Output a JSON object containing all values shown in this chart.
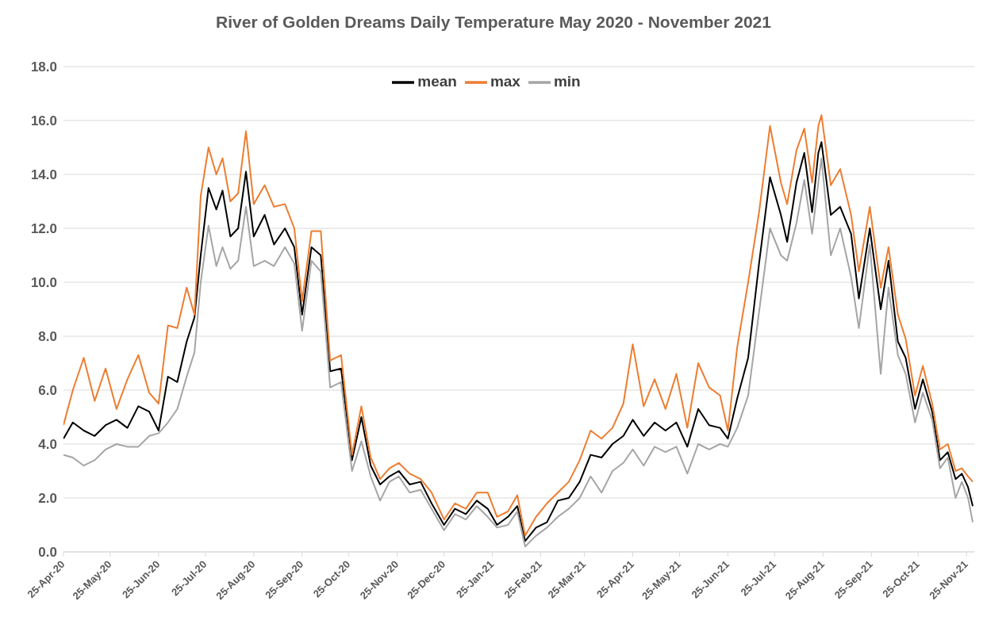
{
  "chart_data": {
    "type": "line",
    "title": "River of Golden Dreams Daily Temperature May 2020 - November 2021",
    "x": [
      "2020-04-25",
      "2020-05-01",
      "2020-05-08",
      "2020-05-15",
      "2020-05-22",
      "2020-05-29",
      "2020-06-05",
      "2020-06-12",
      "2020-06-19",
      "2020-06-25",
      "2020-07-01",
      "2020-07-07",
      "2020-07-13",
      "2020-07-18",
      "2020-07-22",
      "2020-07-27",
      "2020-08-01",
      "2020-08-05",
      "2020-08-10",
      "2020-08-15",
      "2020-08-20",
      "2020-08-25",
      "2020-09-01",
      "2020-09-07",
      "2020-09-14",
      "2020-09-20",
      "2020-09-25",
      "2020-10-01",
      "2020-10-07",
      "2020-10-13",
      "2020-10-20",
      "2020-10-27",
      "2020-11-02",
      "2020-11-08",
      "2020-11-14",
      "2020-11-20",
      "2020-11-26",
      "2020-12-03",
      "2020-12-10",
      "2020-12-17",
      "2020-12-25",
      "2021-01-01",
      "2021-01-08",
      "2021-01-15",
      "2021-01-22",
      "2021-01-28",
      "2021-02-04",
      "2021-02-10",
      "2021-02-15",
      "2021-02-22",
      "2021-03-01",
      "2021-03-08",
      "2021-03-15",
      "2021-03-22",
      "2021-03-29",
      "2021-04-05",
      "2021-04-12",
      "2021-04-19",
      "2021-04-25",
      "2021-05-02",
      "2021-05-09",
      "2021-05-16",
      "2021-05-23",
      "2021-05-30",
      "2021-06-06",
      "2021-06-13",
      "2021-06-20",
      "2021-06-25",
      "2021-07-01",
      "2021-07-08",
      "2021-07-15",
      "2021-07-22",
      "2021-07-29",
      "2021-08-02",
      "2021-08-08",
      "2021-08-13",
      "2021-08-18",
      "2021-08-22",
      "2021-08-24",
      "2021-08-30",
      "2021-09-05",
      "2021-09-12",
      "2021-09-17",
      "2021-09-24",
      "2021-10-01",
      "2021-10-06",
      "2021-10-12",
      "2021-10-17",
      "2021-10-23",
      "2021-10-28",
      "2021-11-03",
      "2021-11-08",
      "2021-11-13",
      "2021-11-18",
      "2021-11-22",
      "2021-11-26",
      "2021-11-29"
    ],
    "series": [
      {
        "name": "mean",
        "color": "#000000",
        "values": [
          4.2,
          4.8,
          4.5,
          4.3,
          4.7,
          4.9,
          4.6,
          5.4,
          5.2,
          4.5,
          6.5,
          6.3,
          7.8,
          8.7,
          11.0,
          13.5,
          12.7,
          13.4,
          11.7,
          12.0,
          14.1,
          11.7,
          12.5,
          11.4,
          12.0,
          11.3,
          8.8,
          11.3,
          11.0,
          6.7,
          6.8,
          3.4,
          5.0,
          3.2,
          2.5,
          2.8,
          3.0,
          2.5,
          2.6,
          1.8,
          1.0,
          1.6,
          1.4,
          1.9,
          1.6,
          1.0,
          1.3,
          1.7,
          0.4,
          0.9,
          1.1,
          1.9,
          2.0,
          2.6,
          3.6,
          3.5,
          4.0,
          4.3,
          4.9,
          4.3,
          4.8,
          4.5,
          4.8,
          3.9,
          5.3,
          4.7,
          4.6,
          4.2,
          5.7,
          7.2,
          10.7,
          13.9,
          12.5,
          11.5,
          13.7,
          14.8,
          12.6,
          14.8,
          15.2,
          12.5,
          12.8,
          11.8,
          9.4,
          12.0,
          9.0,
          10.8,
          7.8,
          7.2,
          5.3,
          6.4,
          5.2,
          3.4,
          3.7,
          2.7,
          2.9,
          2.4,
          1.7
        ]
      },
      {
        "name": "max",
        "color": "#ed7d31",
        "values": [
          4.7,
          6.0,
          7.2,
          5.6,
          6.8,
          5.3,
          6.4,
          7.3,
          5.9,
          5.5,
          8.4,
          8.3,
          9.8,
          8.8,
          13.2,
          15.0,
          14.0,
          14.6,
          13.0,
          13.3,
          15.6,
          12.9,
          13.6,
          12.8,
          12.9,
          12.0,
          9.3,
          11.9,
          11.9,
          7.1,
          7.3,
          3.6,
          5.4,
          3.5,
          2.7,
          3.1,
          3.3,
          2.9,
          2.7,
          2.2,
          1.2,
          1.8,
          1.6,
          2.2,
          2.2,
          1.3,
          1.5,
          2.1,
          0.6,
          1.3,
          1.8,
          2.2,
          2.6,
          3.4,
          4.5,
          4.2,
          4.6,
          5.5,
          7.7,
          5.4,
          6.4,
          5.3,
          6.6,
          4.6,
          7.0,
          6.1,
          5.8,
          4.5,
          7.6,
          10.0,
          12.6,
          15.8,
          13.7,
          12.9,
          14.9,
          15.7,
          13.7,
          15.8,
          16.2,
          13.6,
          14.2,
          12.5,
          10.4,
          12.8,
          9.8,
          11.3,
          8.8,
          7.9,
          5.8,
          6.9,
          5.5,
          3.8,
          4.0,
          3.0,
          3.1,
          2.8,
          2.6
        ]
      },
      {
        "name": "min",
        "color": "#a5a5a5",
        "values": [
          3.6,
          3.5,
          3.2,
          3.4,
          3.8,
          4.0,
          3.9,
          3.9,
          4.3,
          4.4,
          4.8,
          5.3,
          6.5,
          7.4,
          10.0,
          12.1,
          10.6,
          11.3,
          10.5,
          10.8,
          12.8,
          10.6,
          10.8,
          10.6,
          11.3,
          10.7,
          8.2,
          10.8,
          10.4,
          6.1,
          6.3,
          3.0,
          4.1,
          2.8,
          1.9,
          2.6,
          2.8,
          2.2,
          2.3,
          1.6,
          0.8,
          1.4,
          1.2,
          1.7,
          1.3,
          0.9,
          1.0,
          1.5,
          0.2,
          0.6,
          0.9,
          1.3,
          1.6,
          2.0,
          2.8,
          2.2,
          3.0,
          3.3,
          3.8,
          3.2,
          3.9,
          3.7,
          3.9,
          2.9,
          4.0,
          3.8,
          4.0,
          3.9,
          4.6,
          5.8,
          8.9,
          12.0,
          11.0,
          10.8,
          12.2,
          13.8,
          11.8,
          13.7,
          14.6,
          11.0,
          12.0,
          10.2,
          8.3,
          11.4,
          6.6,
          9.8,
          7.3,
          6.6,
          4.8,
          5.9,
          4.9,
          3.1,
          3.5,
          2.0,
          2.6,
          2.0,
          1.1
        ]
      }
    ],
    "xlim": [
      "2020-04-25",
      "2021-11-30"
    ],
    "xticks": [
      {
        "value": "2020-04-25",
        "label": "25-Apr-20"
      },
      {
        "value": "2020-05-25",
        "label": "25-May-20"
      },
      {
        "value": "2020-06-25",
        "label": "25-Jun-20"
      },
      {
        "value": "2020-07-25",
        "label": "25-Jul-20"
      },
      {
        "value": "2020-08-25",
        "label": "25-Aug-20"
      },
      {
        "value": "2020-09-25",
        "label": "25-Sep-20"
      },
      {
        "value": "2020-10-25",
        "label": "25-Oct-20"
      },
      {
        "value": "2020-11-25",
        "label": "25-Nov-20"
      },
      {
        "value": "2020-12-25",
        "label": "25-Dec-20"
      },
      {
        "value": "2021-01-25",
        "label": "25-Jan-21"
      },
      {
        "value": "2021-02-25",
        "label": "25-Feb-21"
      },
      {
        "value": "2021-03-25",
        "label": "25-Mar-21"
      },
      {
        "value": "2021-04-25",
        "label": "25-Apr-21"
      },
      {
        "value": "2021-05-25",
        "label": "25-May-21"
      },
      {
        "value": "2021-06-25",
        "label": "25-Jun-21"
      },
      {
        "value": "2021-07-25",
        "label": "25-Jul-21"
      },
      {
        "value": "2021-08-25",
        "label": "25-Aug-21"
      },
      {
        "value": "2021-09-25",
        "label": "25-Sep-21"
      },
      {
        "value": "2021-10-25",
        "label": "25-Oct-21"
      },
      {
        "value": "2021-11-25",
        "label": "25-Nov-21"
      }
    ],
    "ylim": [
      0,
      18
    ],
    "yticks": [
      {
        "value": 0,
        "label": "0.0"
      },
      {
        "value": 2,
        "label": "2.0"
      },
      {
        "value": 4,
        "label": "4.0"
      },
      {
        "value": 6,
        "label": "6.0"
      },
      {
        "value": 8,
        "label": "8.0"
      },
      {
        "value": 10,
        "label": "10.0"
      },
      {
        "value": 12,
        "label": "12.0"
      },
      {
        "value": 14,
        "label": "14.0"
      },
      {
        "value": 16,
        "label": "16.0"
      },
      {
        "value": 18,
        "label": "18.0"
      }
    ],
    "grid": "y",
    "legend": "top"
  }
}
